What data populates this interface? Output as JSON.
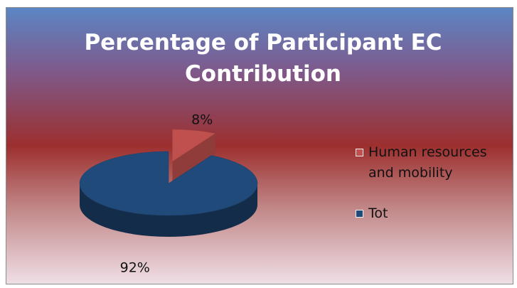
{
  "chart_data": {
    "type": "pie",
    "title": "Percentage of Participant EC Contribution",
    "categories": [
      "Human resources and mobility",
      "Tot"
    ],
    "values": [
      8,
      92
    ],
    "value_labels": [
      "8%",
      "92%"
    ],
    "colors": [
      "#c0504d",
      "#1f4a7a"
    ],
    "explode": [
      true,
      false
    ],
    "legend": "right"
  }
}
